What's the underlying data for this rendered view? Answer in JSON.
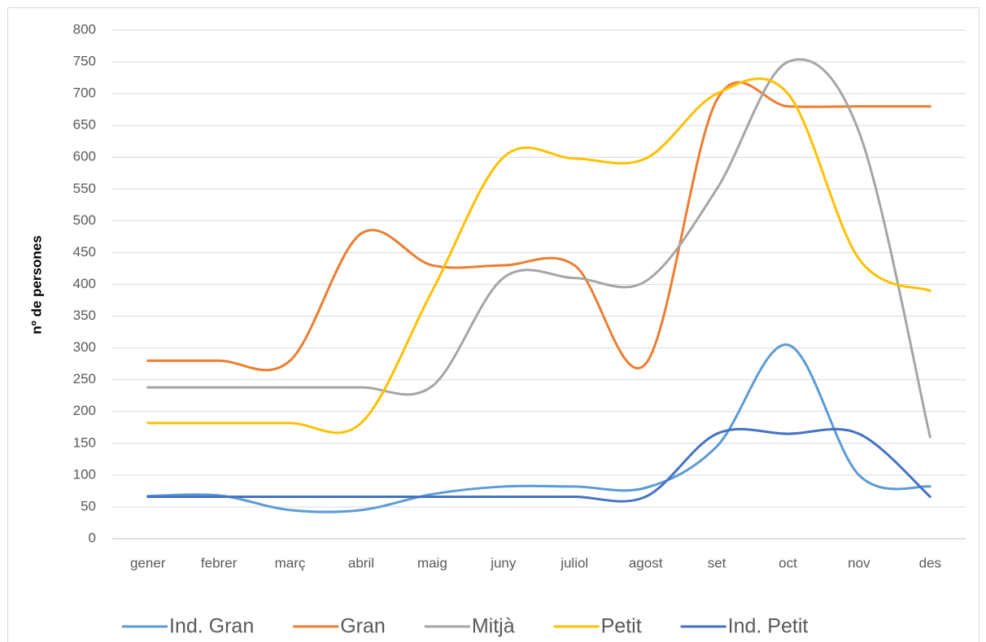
{
  "chart_data": {
    "type": "line",
    "y_label": "nº de persones",
    "categories": [
      "gener",
      "febrer",
      "març",
      "abril",
      "maig",
      "juny",
      "juliol",
      "agost",
      "set",
      "oct",
      "nov",
      "des"
    ],
    "series": [
      {
        "name": "Ind. Gran",
        "color": "#5b9bd5",
        "values": [
          67,
          68,
          45,
          45,
          70,
          82,
          82,
          80,
          145,
          305,
          100,
          82
        ]
      },
      {
        "name": "Gran",
        "color": "#ed7d31",
        "values": [
          280,
          280,
          280,
          480,
          430,
          430,
          430,
          275,
          690,
          680,
          680,
          680
        ]
      },
      {
        "name": "Mitjà",
        "color": "#a5a5a5",
        "values": [
          238,
          238,
          238,
          238,
          240,
          410,
          410,
          405,
          550,
          750,
          640,
          160
        ]
      },
      {
        "name": "Petit",
        "color": "#ffc000",
        "values": [
          182,
          182,
          182,
          182,
          390,
          600,
          598,
          598,
          700,
          700,
          440,
          390
        ]
      },
      {
        "name": "Ind. Petit",
        "color": "#4472c4",
        "values": [
          66,
          66,
          66,
          66,
          66,
          66,
          66,
          66,
          165,
          165,
          165,
          66
        ]
      }
    ],
    "ylim": [
      0,
      800
    ],
    "yticks": [
      0,
      50,
      100,
      150,
      200,
      250,
      300,
      350,
      400,
      450,
      500,
      550,
      600,
      650,
      700,
      750,
      800
    ],
    "grid": true,
    "legend": "bottom"
  }
}
